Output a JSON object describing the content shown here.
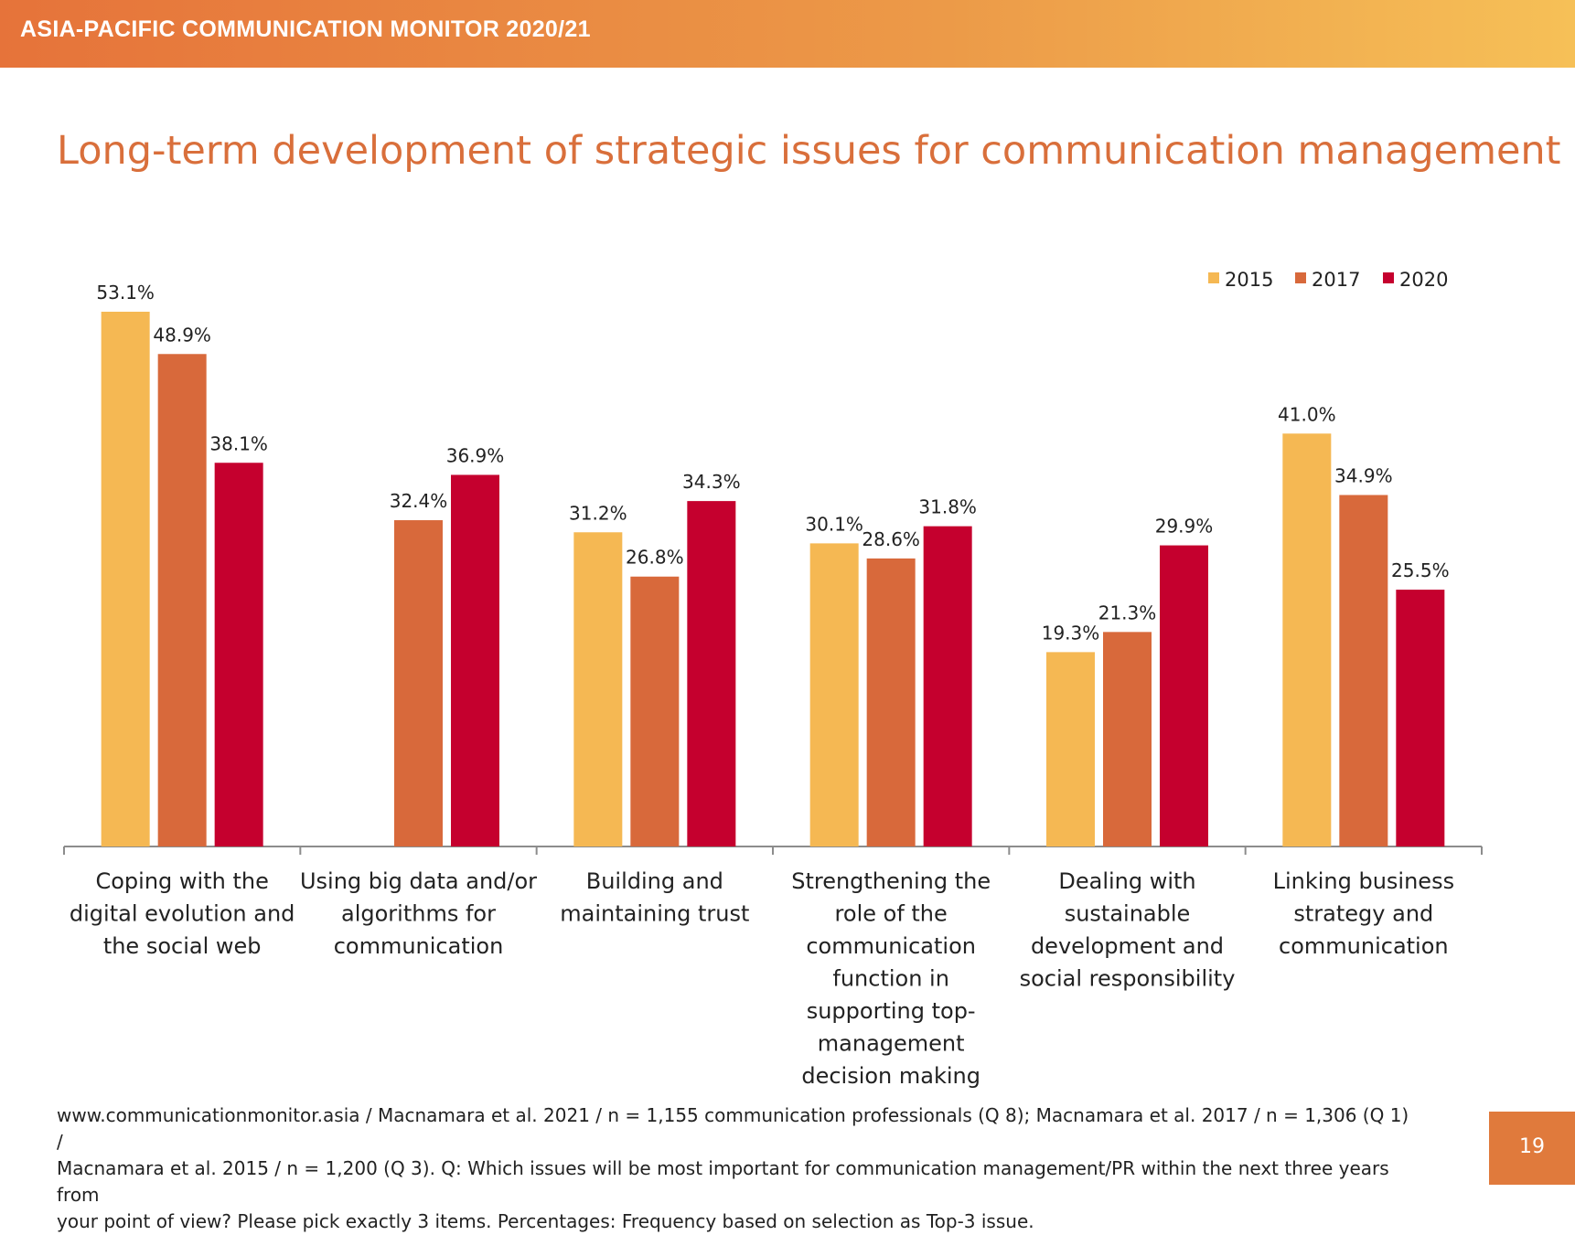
{
  "header": {
    "title": "ASIA-PACIFIC COMMUNICATION MONITOR 2020/21"
  },
  "slide_title": "Long-term development of strategic issues for communication management",
  "chart_data": {
    "type": "bar",
    "title": "Long-term development of strategic issues for communication management",
    "xlabel": "",
    "ylabel": "",
    "ylim": [
      0,
      60
    ],
    "grid": false,
    "legend_placement": "top-right",
    "categories": [
      [
        "Coping with the",
        "digital evolution and",
        "the social web"
      ],
      [
        "Using big data and/or",
        "algorithms for",
        "communication"
      ],
      [
        "Building and",
        "maintaining trust"
      ],
      [
        "Strengthening the",
        "role of the",
        "communication",
        "function in",
        "supporting top-",
        "management",
        "decision making"
      ],
      [
        "Dealing with",
        "sustainable",
        "development and",
        "social responsibility"
      ],
      [
        "Linking business",
        "strategy and",
        "communication"
      ]
    ],
    "series": [
      {
        "name": "2015",
        "color": "#f5b853",
        "values": [
          53.1,
          null,
          31.2,
          30.1,
          19.3,
          41.0
        ],
        "labels": [
          "53.1%",
          "",
          "31.2%",
          "30.1%",
          "19.3%",
          "41.0%"
        ]
      },
      {
        "name": "2017",
        "color": "#d8693b",
        "values": [
          48.9,
          32.4,
          26.8,
          28.6,
          21.3,
          34.9
        ],
        "labels": [
          "48.9%",
          "32.4%",
          "26.8%",
          "28.6%",
          "21.3%",
          "34.9%"
        ]
      },
      {
        "name": "2020",
        "color": "#c5002e",
        "values": [
          38.1,
          36.9,
          34.3,
          31.8,
          29.9,
          25.5
        ],
        "labels": [
          "38.1%",
          "36.9%",
          "34.3%",
          "31.8%",
          "29.9%",
          "25.5%"
        ]
      }
    ]
  },
  "footnote": {
    "lines": [
      "www.communicationmonitor.asia / Macnamara et al. 2021 / n = 1,155 communication professionals (Q 8); Macnamara et al. 2017 / n = 1,306 (Q 1) /",
      "Macnamara et al. 2015 / n = 1,200 (Q 3). Q: Which issues will be most important for communication management/PR within the next three years from",
      "your point of view? Please pick exactly 3 items. Percentages: Frequency based on selection as Top-3 issue."
    ]
  },
  "page_number": "19"
}
